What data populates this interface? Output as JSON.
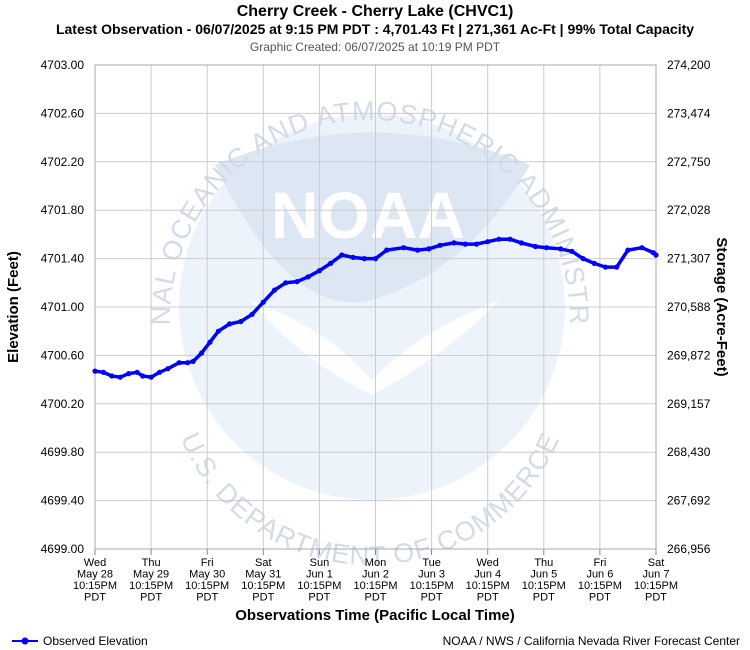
{
  "chart_data": {
    "type": "line",
    "title": "Cherry Creek - Cherry Lake (CHVC1)",
    "subtitle": "Latest Observation - 06/07/2025 at 9:15 PM PDT : 4,701.43 Ft | 271,361 Ac-Ft | 99% Total Capacity",
    "created": "Graphic Created: 06/07/2025 at 10:19 PM PDT",
    "xlabel": "Observations Time (Pacific Local Time)",
    "ylabel": "Elevation (Feet)",
    "y2label": "Storage (Acre-Feet)",
    "ylim": [
      4699.0,
      4703.0
    ],
    "xlim": [
      0,
      10
    ],
    "grid": true,
    "legend_placement": "bottom-left",
    "y_ticks": [
      "4703.00",
      "4702.60",
      "4702.20",
      "4701.80",
      "4701.40",
      "4701.00",
      "4700.60",
      "4700.20",
      "4699.80",
      "4699.40",
      "4699.00"
    ],
    "y2_ticks": [
      "274,200",
      "273,474",
      "272,750",
      "272,028",
      "271,307",
      "270,588",
      "269,872",
      "269,157",
      "268,430",
      "267,692",
      "266,956"
    ],
    "x_ticks": [
      [
        "Wed",
        "May 28",
        "10:15PM",
        "PDT"
      ],
      [
        "Thu",
        "May 29",
        "10:15PM",
        "PDT"
      ],
      [
        "Fri",
        "May 30",
        "10:15PM",
        "PDT"
      ],
      [
        "Sat",
        "May 31",
        "10:15PM",
        "PDT"
      ],
      [
        "Sun",
        "Jun 1",
        "10:15PM",
        "PDT"
      ],
      [
        "Mon",
        "Jun 2",
        "10:15PM",
        "PDT"
      ],
      [
        "Tue",
        "Jun 3",
        "10:15PM",
        "PDT"
      ],
      [
        "Wed",
        "Jun 4",
        "10:15PM",
        "PDT"
      ],
      [
        "Thu",
        "Jun 5",
        "10:15PM",
        "PDT"
      ],
      [
        "Fri",
        "Jun 6",
        "10:15PM",
        "PDT"
      ],
      [
        "Sat",
        "Jun 7",
        "10:15PM",
        "PDT"
      ]
    ],
    "series": [
      {
        "name": "Observed Elevation",
        "color": "#0000ff",
        "x": [
          0,
          0.15,
          0.3,
          0.45,
          0.6,
          0.75,
          0.85,
          1.0,
          1.15,
          1.3,
          1.5,
          1.65,
          1.75,
          1.9,
          2.05,
          2.2,
          2.4,
          2.6,
          2.8,
          3.0,
          3.2,
          3.4,
          3.6,
          3.8,
          4.0,
          4.2,
          4.4,
          4.6,
          4.8,
          5.0,
          5.2,
          5.5,
          5.75,
          5.95,
          6.15,
          6.4,
          6.6,
          6.8,
          7.0,
          7.2,
          7.4,
          7.6,
          7.85,
          8.05,
          8.3,
          8.5,
          8.7,
          8.9,
          9.1,
          9.3,
          9.5,
          9.75,
          9.95,
          10.0
        ],
        "y": [
          4700.47,
          4700.46,
          4700.43,
          4700.42,
          4700.45,
          4700.46,
          4700.43,
          4700.42,
          4700.46,
          4700.49,
          4700.54,
          4700.54,
          4700.55,
          4700.62,
          4700.71,
          4700.8,
          4700.86,
          4700.88,
          4700.94,
          4701.04,
          4701.14,
          4701.2,
          4701.21,
          4701.25,
          4701.3,
          4701.36,
          4701.43,
          4701.41,
          4701.4,
          4701.4,
          4701.47,
          4701.49,
          4701.47,
          4701.48,
          4701.51,
          4701.53,
          4701.52,
          4701.52,
          4701.54,
          4701.56,
          4701.56,
          4701.53,
          4701.5,
          4701.49,
          4701.48,
          4701.46,
          4701.4,
          4701.36,
          4701.33,
          4701.33,
          4701.47,
          4701.49,
          4701.45,
          4701.43
        ]
      }
    ]
  },
  "legend": {
    "label": "Observed Elevation"
  },
  "footer": {
    "credit": "NOAA / NWS / California Nevada River Forecast Center"
  },
  "watermark": {
    "logo_text": "NOAA",
    "ring_top": "NATIONAL OCEANIC AND ATMOSPHERIC ADMINISTRATION",
    "ring_bottom": "U.S. DEPARTMENT OF COMMERCE"
  }
}
